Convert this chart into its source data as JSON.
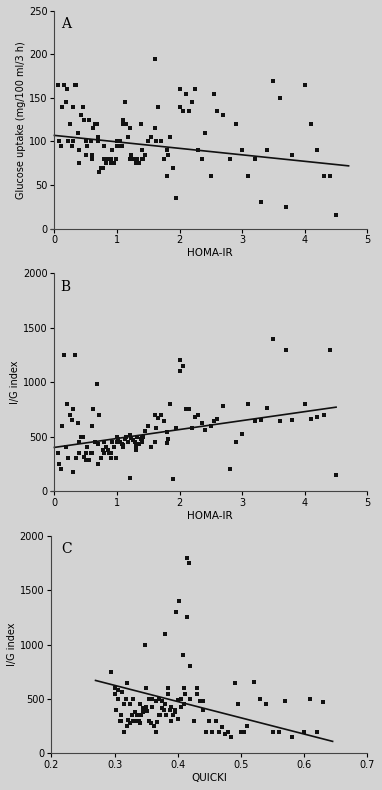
{
  "background_color": "#d3d3d3",
  "plot_bg_color": "#d3d3d3",
  "marker": "s",
  "marker_size": 9,
  "marker_color": "#111111",
  "line_color": "#111111",
  "line_width": 1.2,
  "panel_A": {
    "label": "A",
    "xlabel": "HOMA-IR",
    "ylabel": "Glucose uptake (mg/100 ml/3 h)",
    "xlim": [
      -0.05,
      5
    ],
    "ylim": [
      0,
      250
    ],
    "xticks": [
      0,
      1,
      2,
      3,
      4,
      5
    ],
    "yticks": [
      0,
      50,
      100,
      150,
      200,
      250
    ],
    "line_x": [
      0,
      4.7
    ],
    "line_y": [
      107,
      72
    ],
    "x": [
      0.05,
      0.08,
      0.1,
      0.12,
      0.15,
      0.18,
      0.2,
      0.22,
      0.25,
      0.28,
      0.3,
      0.3,
      0.33,
      0.35,
      0.38,
      0.4,
      0.4,
      0.42,
      0.45,
      0.48,
      0.5,
      0.5,
      0.52,
      0.55,
      0.58,
      0.6,
      0.6,
      0.62,
      0.65,
      0.68,
      0.7,
      0.7,
      0.72,
      0.75,
      0.78,
      0.8,
      0.8,
      0.82,
      0.85,
      0.88,
      0.9,
      0.9,
      0.92,
      0.95,
      0.98,
      1.0,
      1.0,
      1.02,
      1.05,
      1.08,
      1.1,
      1.1,
      1.12,
      1.15,
      1.18,
      1.2,
      1.2,
      1.22,
      1.25,
      1.28,
      1.3,
      1.3,
      1.32,
      1.35,
      1.38,
      1.4,
      1.4,
      1.42,
      1.45,
      1.5,
      1.55,
      1.6,
      1.6,
      1.62,
      1.65,
      1.7,
      1.75,
      1.8,
      1.8,
      1.82,
      1.85,
      1.9,
      1.95,
      2.0,
      2.0,
      2.05,
      2.1,
      2.15,
      2.2,
      2.25,
      2.3,
      2.35,
      2.4,
      2.5,
      2.55,
      2.6,
      2.7,
      2.8,
      2.9,
      3.0,
      3.1,
      3.2,
      3.3,
      3.4,
      3.5,
      3.6,
      3.7,
      3.8,
      4.0,
      4.1,
      4.2,
      4.3,
      4.4,
      4.5
    ],
    "y": [
      165,
      100,
      95,
      140,
      165,
      145,
      160,
      100,
      120,
      95,
      100,
      140,
      165,
      165,
      110,
      75,
      90,
      130,
      140,
      125,
      100,
      85,
      95,
      125,
      100,
      85,
      80,
      115,
      120,
      120,
      105,
      100,
      65,
      70,
      70,
      80,
      95,
      75,
      80,
      80,
      75,
      80,
      90,
      75,
      80,
      95,
      100,
      95,
      100,
      95,
      125,
      120,
      145,
      120,
      105,
      115,
      80,
      85,
      80,
      80,
      75,
      80,
      80,
      75,
      120,
      90,
      80,
      80,
      85,
      100,
      105,
      195,
      115,
      100,
      140,
      100,
      80,
      90,
      60,
      85,
      105,
      70,
      35,
      160,
      140,
      135,
      155,
      135,
      145,
      160,
      90,
      80,
      110,
      60,
      155,
      135,
      130,
      80,
      120,
      90,
      60,
      80,
      30,
      90,
      170,
      150,
      25,
      85,
      165,
      120,
      90,
      60,
      60,
      15
    ]
  },
  "panel_B": {
    "label": "B",
    "xlabel": "HOMA-IR",
    "ylabel": "I/G index",
    "xlim": [
      -0.05,
      5
    ],
    "ylim": [
      0,
      2000
    ],
    "xticks": [
      0,
      1,
      2,
      3,
      4,
      5
    ],
    "yticks": [
      0,
      500,
      1000,
      1500,
      2000
    ],
    "line_x": [
      0,
      4.5
    ],
    "line_y": [
      400,
      770
    ],
    "x": [
      0.05,
      0.08,
      0.1,
      0.12,
      0.15,
      0.18,
      0.2,
      0.22,
      0.25,
      0.28,
      0.3,
      0.3,
      0.33,
      0.35,
      0.38,
      0.4,
      0.4,
      0.42,
      0.45,
      0.48,
      0.5,
      0.5,
      0.52,
      0.55,
      0.58,
      0.6,
      0.6,
      0.62,
      0.65,
      0.68,
      0.7,
      0.7,
      0.72,
      0.75,
      0.78,
      0.8,
      0.8,
      0.82,
      0.85,
      0.88,
      0.9,
      0.9,
      0.92,
      0.95,
      0.98,
      1.0,
      1.0,
      1.02,
      1.05,
      1.08,
      1.1,
      1.1,
      1.12,
      1.15,
      1.18,
      1.2,
      1.2,
      1.22,
      1.25,
      1.28,
      1.3,
      1.3,
      1.32,
      1.35,
      1.38,
      1.4,
      1.4,
      1.42,
      1.45,
      1.5,
      1.55,
      1.6,
      1.6,
      1.62,
      1.65,
      1.7,
      1.75,
      1.8,
      1.8,
      1.82,
      1.85,
      1.9,
      1.95,
      2.0,
      2.0,
      2.05,
      2.1,
      2.15,
      2.2,
      2.25,
      2.3,
      2.35,
      2.4,
      2.5,
      2.55,
      2.6,
      2.7,
      2.8,
      2.9,
      3.0,
      3.1,
      3.2,
      3.3,
      3.4,
      3.5,
      3.6,
      3.7,
      3.8,
      4.0,
      4.1,
      4.2,
      4.3,
      4.4,
      4.5
    ],
    "y": [
      350,
      250,
      200,
      600,
      1250,
      400,
      800,
      300,
      700,
      650,
      170,
      750,
      1250,
      300,
      620,
      450,
      350,
      500,
      500,
      310,
      350,
      280,
      400,
      280,
      350,
      600,
      350,
      750,
      450,
      980,
      430,
      250,
      700,
      300,
      380,
      450,
      350,
      400,
      380,
      350,
      300,
      350,
      450,
      400,
      300,
      450,
      500,
      480,
      450,
      430,
      420,
      400,
      480,
      500,
      450,
      510,
      115,
      490,
      470,
      450,
      410,
      380,
      500,
      430,
      480,
      490,
      450,
      500,
      550,
      600,
      400,
      700,
      450,
      580,
      670,
      700,
      640,
      440,
      540,
      480,
      800,
      110,
      580,
      1200,
      1100,
      1150,
      750,
      750,
      580,
      680,
      700,
      620,
      560,
      600,
      640,
      660,
      780,
      200,
      450,
      520,
      800,
      640,
      650,
      760,
      1400,
      640,
      1300,
      650,
      800,
      660,
      680,
      700,
      1300,
      150
    ]
  },
  "panel_C": {
    "label": "C",
    "xlabel": "QUICKI",
    "ylabel": "I/G index",
    "xlim": [
      0.2,
      0.7
    ],
    "ylim": [
      0,
      2000
    ],
    "xticks": [
      0.2,
      0.3,
      0.4,
      0.5,
      0.6,
      0.7
    ],
    "yticks": [
      0,
      500,
      1000,
      1500,
      2000
    ],
    "line_x": [
      0.27,
      0.645
    ],
    "line_y": [
      670,
      110
    ],
    "x": [
      0.295,
      0.3,
      0.3,
      0.302,
      0.305,
      0.305,
      0.308,
      0.31,
      0.31,
      0.312,
      0.315,
      0.315,
      0.318,
      0.32,
      0.32,
      0.322,
      0.325,
      0.325,
      0.328,
      0.33,
      0.33,
      0.332,
      0.335,
      0.335,
      0.338,
      0.34,
      0.34,
      0.342,
      0.345,
      0.345,
      0.348,
      0.35,
      0.35,
      0.352,
      0.355,
      0.355,
      0.358,
      0.36,
      0.36,
      0.362,
      0.365,
      0.365,
      0.368,
      0.37,
      0.37,
      0.372,
      0.375,
      0.375,
      0.378,
      0.38,
      0.38,
      0.382,
      0.385,
      0.385,
      0.388,
      0.39,
      0.39,
      0.392,
      0.395,
      0.395,
      0.398,
      0.4,
      0.4,
      0.402,
      0.405,
      0.405,
      0.408,
      0.41,
      0.41,
      0.412,
      0.415,
      0.415,
      0.418,
      0.42,
      0.42,
      0.425,
      0.43,
      0.43,
      0.435,
      0.44,
      0.44,
      0.445,
      0.45,
      0.455,
      0.46,
      0.465,
      0.47,
      0.475,
      0.48,
      0.485,
      0.49,
      0.495,
      0.5,
      0.505,
      0.51,
      0.52,
      0.53,
      0.54,
      0.55,
      0.56,
      0.57,
      0.58,
      0.6,
      0.61,
      0.62,
      0.63
    ],
    "y": [
      750,
      600,
      550,
      400,
      500,
      580,
      300,
      350,
      300,
      560,
      200,
      450,
      500,
      650,
      250,
      310,
      450,
      280,
      350,
      300,
      500,
      380,
      300,
      350,
      300,
      280,
      450,
      350,
      420,
      380,
      1000,
      430,
      600,
      390,
      500,
      300,
      280,
      430,
      500,
      250,
      480,
      200,
      290,
      500,
      350,
      350,
      420,
      480,
      400,
      450,
      1100,
      350,
      550,
      600,
      400,
      430,
      300,
      350,
      380,
      400,
      1300,
      490,
      320,
      1400,
      500,
      430,
      900,
      600,
      450,
      550,
      1250,
      1800,
      1750,
      800,
      500,
      300,
      600,
      550,
      480,
      400,
      480,
      200,
      300,
      200,
      300,
      200,
      240,
      180,
      200,
      150,
      650,
      450,
      200,
      200,
      250,
      660,
      500,
      450,
      200,
      200,
      480,
      150,
      200,
      500,
      200,
      470
    ]
  }
}
